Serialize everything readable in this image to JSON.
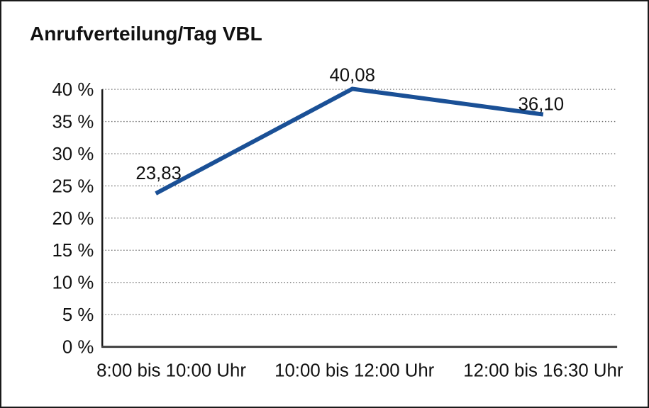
{
  "title": "Anrufverteilung/Tag VBL",
  "colors": {
    "line": "#1a5096",
    "grid": "#6e6e6e",
    "y_axis": "#1a1a1a",
    "x_axis": "#404040",
    "text": "#111111",
    "border": "#1a1a1a",
    "background": "#ffffff"
  },
  "chart_data": {
    "type": "line",
    "title": "Anrufverteilung/Tag VBL",
    "categories": [
      "8:00 bis 10:00 Uhr",
      "10:00 bis 12:00 Uhr",
      "12:00 bis 16:30 Uhr"
    ],
    "values": [
      23.83,
      40.08,
      36.1
    ],
    "value_labels": [
      "23,83",
      "40,08",
      "36,10"
    ],
    "xlabel": "",
    "ylabel": "",
    "ylim": [
      0,
      40
    ],
    "ytick_step": 5,
    "ytick_labels": [
      "0 %",
      "5 %",
      "10 %",
      "15 %",
      "20 %",
      "25 %",
      "30 %",
      "35 %",
      "40 %"
    ],
    "grid": "horizontal-dotted",
    "legend": "none",
    "line_width": 6
  }
}
